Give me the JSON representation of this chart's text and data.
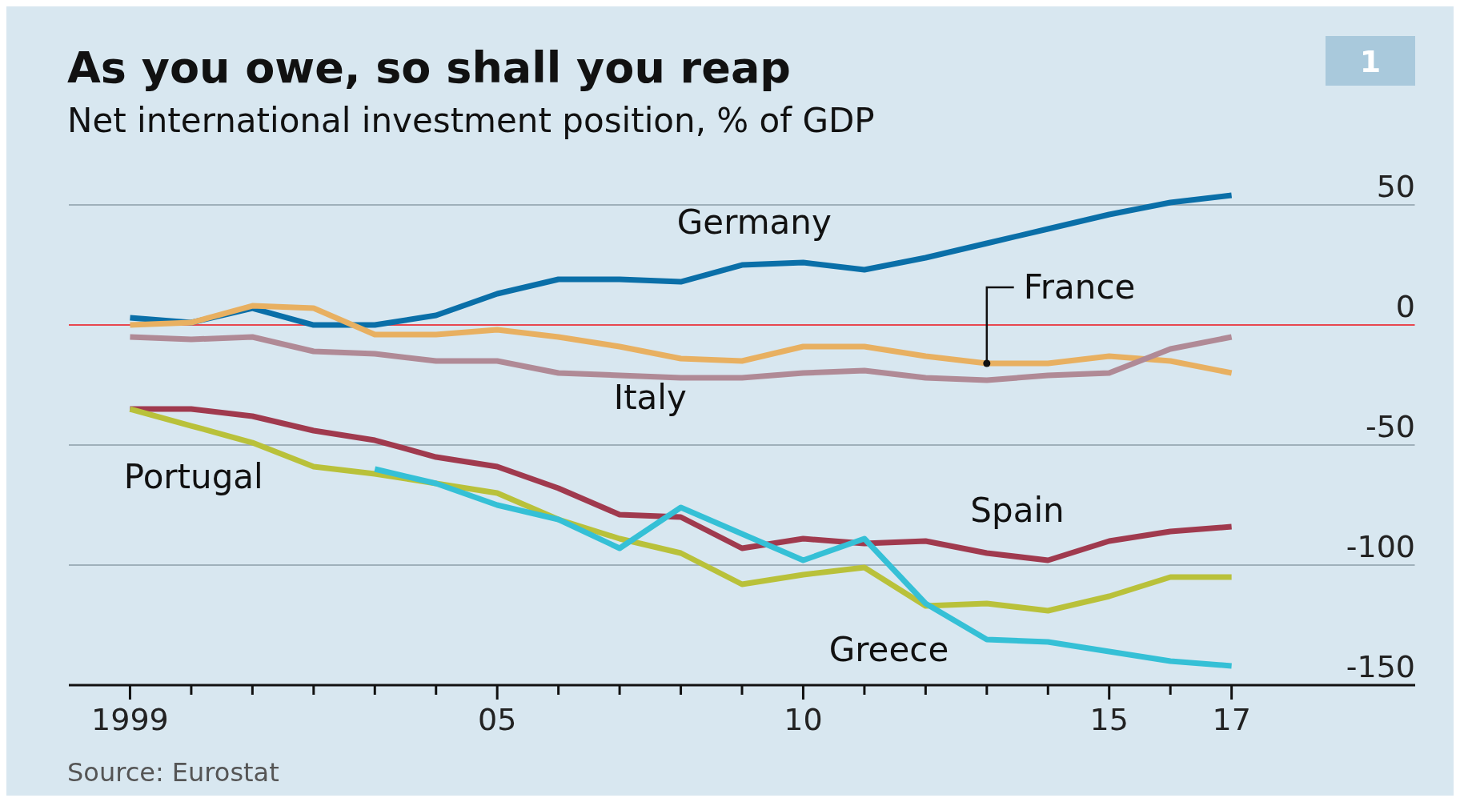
{
  "chart_data": {
    "type": "line",
    "title": "As you owe, so shall you reap",
    "subtitle": "Net international investment position, % of GDP",
    "annotations": [
      "1",
      "Source: Eurostat"
    ],
    "x": [
      1999,
      2000,
      2001,
      2002,
      2003,
      2004,
      2005,
      2006,
      2007,
      2008,
      2009,
      2010,
      2011,
      2012,
      2013,
      2014,
      2015,
      2016,
      2017
    ],
    "xlim": [
      1998,
      2020
    ],
    "xticks": [
      1999,
      {
        "value": 2000,
        "label": null
      },
      {
        "value": 2001,
        "label": null
      },
      {
        "value": 2002,
        "label": null
      },
      {
        "value": 2003,
        "label": null
      },
      {
        "value": 2004,
        "label": null
      },
      {
        "value": 2005,
        "label": "05"
      },
      {
        "value": 2006,
        "label": null
      },
      {
        "value": 2007,
        "label": null
      },
      {
        "value": 2008,
        "label": null
      },
      {
        "value": 2009,
        "label": null
      },
      {
        "value": 2010,
        "label": "10"
      },
      {
        "value": 2011,
        "label": null
      },
      {
        "value": 2012,
        "label": null
      },
      {
        "value": 2013,
        "label": null
      },
      {
        "value": 2014,
        "label": null
      },
      {
        "value": 2015,
        "label": "15"
      },
      {
        "value": 2016,
        "label": null
      },
      {
        "value": 2017,
        "label": "17"
      }
    ],
    "ylim": [
      -150,
      60
    ],
    "yticks": [
      -150,
      -100,
      -50,
      0,
      50
    ],
    "grid": "y",
    "ref_lines": [
      {
        "axis": "y",
        "value": 0,
        "color": "#e8474f"
      }
    ],
    "series": [
      {
        "name": "Germany",
        "color": "#0a6fa8",
        "values": [
          3,
          1,
          7,
          0,
          0,
          4,
          13,
          19,
          19,
          18,
          25,
          26,
          23,
          28,
          34,
          40,
          46,
          51,
          54
        ]
      },
      {
        "name": "France",
        "color": "#e8b061",
        "values": [
          0,
          1,
          8,
          7,
          -4,
          -4,
          -2,
          -5,
          -9,
          -14,
          -15,
          -9,
          -9,
          -13,
          -16,
          -16,
          -13,
          -15,
          -20
        ]
      },
      {
        "name": "Italy",
        "color": "#b08a96",
        "values": [
          -5,
          -6,
          -5,
          -11,
          -12,
          -15,
          -15,
          -20,
          -21,
          -22,
          -22,
          -20,
          -19,
          -22,
          -23,
          -21,
          -20,
          -10,
          -5
        ]
      },
      {
        "name": "Spain",
        "color": "#a03a4e",
        "values": [
          -35,
          -35,
          -38,
          -44,
          -48,
          -55,
          -59,
          -68,
          -79,
          -80,
          -93,
          -89,
          -91,
          -90,
          -95,
          -98,
          -90,
          -86,
          -84
        ]
      },
      {
        "name": "Portugal",
        "color": "#b9c13a",
        "values": [
          -35,
          -42,
          -49,
          -59,
          -62,
          -66,
          -70,
          -81,
          -89,
          -95,
          -108,
          -104,
          -101,
          -117,
          -116,
          -119,
          -113,
          -105,
          -105
        ]
      },
      {
        "name": "Greece",
        "color": "#35c0d6",
        "values": [
          null,
          null,
          null,
          null,
          -60,
          -66,
          -75,
          -81,
          -93,
          -76,
          -87,
          -98,
          -89,
          -116,
          -131,
          -132,
          -136,
          -140,
          -142
        ]
      }
    ]
  }
}
